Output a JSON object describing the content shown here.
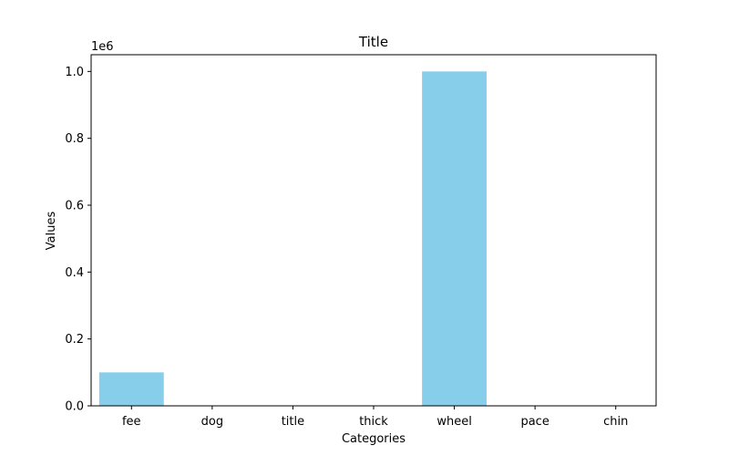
{
  "chart_data": {
    "type": "bar",
    "title": "Title",
    "xlabel": "Categories",
    "ylabel": "Values",
    "categories": [
      "fee",
      "dog",
      "title",
      "thick",
      "wheel",
      "pace",
      "chin"
    ],
    "values": [
      100000,
      0,
      0,
      0,
      1000000,
      0,
      0
    ],
    "ylim": [
      0,
      1050000
    ],
    "yticks": [
      0,
      200000,
      400000,
      600000,
      800000,
      1000000
    ],
    "ytick_labels": [
      "0.0",
      "0.2",
      "0.4",
      "0.6",
      "0.8",
      "1.0"
    ],
    "offset_text": "1e6",
    "bar_color": "#87ceeb",
    "grid": false,
    "legend": "none"
  }
}
